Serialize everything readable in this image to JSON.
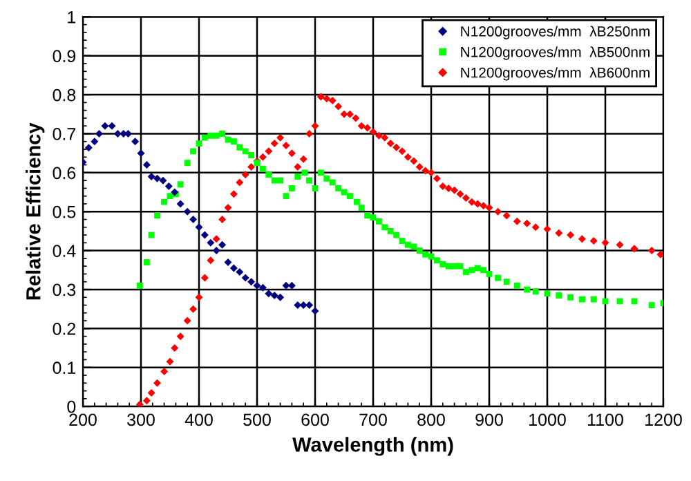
{
  "chart_data": {
    "type": "scatter",
    "xlabel": "Wavelength (nm)",
    "ylabel": "Relative Efficiency",
    "xlim": [
      200,
      1200
    ],
    "xticks": [
      200,
      300,
      400,
      500,
      600,
      700,
      800,
      900,
      1000,
      1100,
      1200
    ],
    "ylim": [
      0,
      1
    ],
    "yticks": [
      0,
      0.1,
      0.2,
      0.3,
      0.4,
      0.5,
      0.6,
      0.7,
      0.8,
      0.9,
      1
    ],
    "grid": true,
    "legend": "top right",
    "series": [
      {
        "name": "N1200grooves/mm  λB250nm",
        "color": "#000080",
        "marker": "diamond",
        "x": [
          200,
          210,
          220,
          228,
          238,
          250,
          260,
          270,
          278,
          290,
          300,
          310,
          318,
          328,
          338,
          348,
          358,
          368,
          380,
          390,
          400,
          410,
          420,
          430,
          440,
          450,
          460,
          470,
          480,
          490,
          500,
          510,
          520,
          530,
          540,
          550,
          560,
          570,
          580,
          590,
          600
        ],
        "values": [
          0.627,
          0.664,
          0.68,
          0.7,
          0.72,
          0.72,
          0.7,
          0.7,
          0.7,
          0.68,
          0.65,
          0.62,
          0.59,
          0.585,
          0.58,
          0.565,
          0.55,
          0.52,
          0.5,
          0.48,
          0.46,
          0.44,
          0.42,
          0.4,
          0.415,
          0.37,
          0.355,
          0.345,
          0.33,
          0.32,
          0.31,
          0.305,
          0.29,
          0.285,
          0.28,
          0.31,
          0.31,
          0.26,
          0.26,
          0.26,
          0.245
        ]
      },
      {
        "name": "N1200grooves/mm  λB500nm",
        "color": "#00ff00",
        "marker": "square",
        "x": [
          298,
          310,
          318,
          328,
          340,
          350,
          360,
          368,
          380,
          390,
          400,
          410,
          420,
          430,
          440,
          450,
          460,
          470,
          480,
          490,
          500,
          510,
          520,
          530,
          540,
          550,
          560,
          570,
          582,
          590,
          600,
          610,
          620,
          630,
          640,
          650,
          660,
          672,
          680,
          690,
          700,
          710,
          720,
          730,
          740,
          750,
          760,
          770,
          780,
          790,
          800,
          810,
          820,
          830,
          840,
          850,
          860,
          870,
          880,
          890,
          900,
          915,
          930,
          948,
          965,
          980,
          1000,
          1020,
          1040,
          1060,
          1080,
          1100,
          1125,
          1150,
          1180,
          1200
        ],
        "values": [
          0.31,
          0.37,
          0.44,
          0.49,
          0.525,
          0.54,
          0.545,
          0.57,
          0.625,
          0.655,
          0.675,
          0.69,
          0.695,
          0.695,
          0.7,
          0.685,
          0.68,
          0.665,
          0.655,
          0.645,
          0.625,
          0.61,
          0.595,
          0.58,
          0.58,
          0.54,
          0.56,
          0.59,
          0.6,
          0.58,
          0.56,
          0.6,
          0.585,
          0.575,
          0.56,
          0.55,
          0.54,
          0.525,
          0.51,
          0.49,
          0.485,
          0.475,
          0.46,
          0.45,
          0.44,
          0.425,
          0.415,
          0.41,
          0.4,
          0.39,
          0.385,
          0.375,
          0.365,
          0.36,
          0.36,
          0.36,
          0.345,
          0.35,
          0.355,
          0.35,
          0.34,
          0.33,
          0.32,
          0.31,
          0.3,
          0.295,
          0.29,
          0.285,
          0.28,
          0.275,
          0.275,
          0.27,
          0.27,
          0.27,
          0.26,
          0.265
        ]
      },
      {
        "name": "N1200grooves/mm  λB600nm",
        "color": "#ff0000",
        "marker": "diamond",
        "x": [
          298,
          310,
          318,
          328,
          340,
          350,
          358,
          368,
          380,
          390,
          400,
          410,
          420,
          430,
          440,
          450,
          460,
          470,
          480,
          490,
          500,
          510,
          520,
          530,
          540,
          550,
          560,
          570,
          580,
          590,
          600,
          610,
          620,
          630,
          640,
          650,
          660,
          670,
          680,
          690,
          700,
          710,
          720,
          730,
          740,
          750,
          760,
          770,
          780,
          790,
          800,
          810,
          820,
          830,
          840,
          850,
          860,
          870,
          880,
          890,
          900,
          915,
          930,
          948,
          965,
          980,
          1000,
          1020,
          1040,
          1060,
          1080,
          1100,
          1125,
          1150,
          1180,
          1195,
          1200
        ],
        "values": [
          0.005,
          0.015,
          0.035,
          0.06,
          0.09,
          0.115,
          0.15,
          0.18,
          0.22,
          0.25,
          0.28,
          0.33,
          0.375,
          0.43,
          0.48,
          0.51,
          0.545,
          0.575,
          0.595,
          0.615,
          0.63,
          0.64,
          0.655,
          0.675,
          0.69,
          0.67,
          0.65,
          0.615,
          0.635,
          0.7,
          0.72,
          0.795,
          0.79,
          0.785,
          0.77,
          0.75,
          0.75,
          0.74,
          0.72,
          0.715,
          0.705,
          0.695,
          0.69,
          0.675,
          0.665,
          0.655,
          0.64,
          0.63,
          0.615,
          0.605,
          0.6,
          0.585,
          0.565,
          0.56,
          0.555,
          0.545,
          0.535,
          0.525,
          0.52,
          0.515,
          0.51,
          0.5,
          0.49,
          0.475,
          0.47,
          0.46,
          0.455,
          0.445,
          0.44,
          0.43,
          0.425,
          0.42,
          0.415,
          0.405,
          0.4,
          0.39,
          0.39
        ]
      }
    ]
  }
}
